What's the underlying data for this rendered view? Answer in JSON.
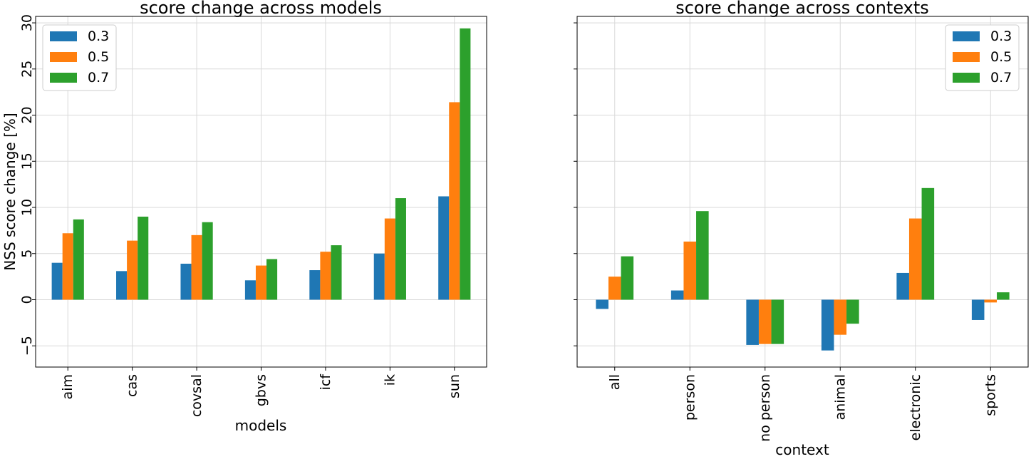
{
  "chart_data": [
    {
      "type": "bar",
      "title": "score change across models",
      "xlabel": "models",
      "ylabel": "NSS score change [%]",
      "categories": [
        "aim",
        "cas",
        "covsal",
        "gbvs",
        "icf",
        "ik",
        "sun"
      ],
      "series": [
        {
          "name": "0.3",
          "color": "#1f77b4",
          "values": [
            4.0,
            3.1,
            3.9,
            2.1,
            3.2,
            5.0,
            11.2
          ]
        },
        {
          "name": "0.5",
          "color": "#ff7f0e",
          "values": [
            7.2,
            6.4,
            7.0,
            3.7,
            5.2,
            8.8,
            21.4
          ]
        },
        {
          "name": "0.7",
          "color": "#2ca02c",
          "values": [
            8.7,
            9.0,
            8.4,
            4.4,
            5.9,
            11.0,
            29.4
          ]
        }
      ],
      "ylim": [
        -7.3,
        30.7
      ],
      "yticks": [
        -5,
        0,
        5,
        10,
        15,
        20,
        25,
        30
      ],
      "ytick_labels": [
        "−5",
        "0",
        "5",
        "10",
        "15",
        "20",
        "25",
        "30"
      ],
      "grid": true,
      "legend_position": "upper-left"
    },
    {
      "type": "bar",
      "title": "score change across contexts",
      "xlabel": "context",
      "ylabel": "",
      "categories": [
        "all",
        "person",
        "no person",
        "animal",
        "electronic",
        "sports"
      ],
      "series": [
        {
          "name": "0.3",
          "color": "#1f77b4",
          "values": [
            -1.0,
            1.0,
            -4.9,
            -5.5,
            2.9,
            -2.2
          ]
        },
        {
          "name": "0.5",
          "color": "#ff7f0e",
          "values": [
            2.5,
            6.3,
            -4.8,
            -3.8,
            8.8,
            -0.3
          ]
        },
        {
          "name": "0.7",
          "color": "#2ca02c",
          "values": [
            4.7,
            9.6,
            -4.8,
            -2.6,
            12.1,
            0.8
          ]
        }
      ],
      "ylim": [
        -7.3,
        30.7
      ],
      "yticks": [
        -5,
        0,
        5,
        10,
        15,
        20,
        25,
        30
      ],
      "ytick_labels": [],
      "grid": true,
      "legend_position": "upper-right"
    }
  ]
}
